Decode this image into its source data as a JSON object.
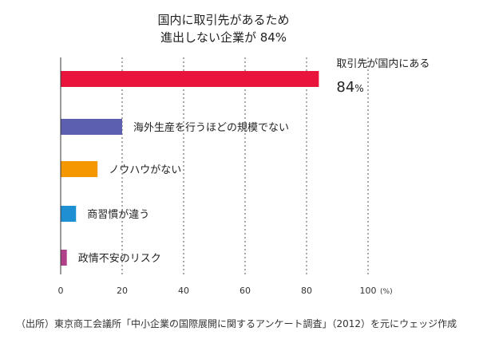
{
  "chart_data": {
    "type": "bar",
    "orientation": "horizontal",
    "title_lines": [
      "国内に取引先があるため",
      "進出しない企業が 84%"
    ],
    "categories": [
      "取引先が国内にある",
      "海外生産を行うほどの規模でない",
      "ノウハウがない",
      "商習慣が違う",
      "政情不安のリスク"
    ],
    "values": [
      84,
      20,
      12,
      5,
      2
    ],
    "bar_colors": [
      "#e8143c",
      "#5c5fad",
      "#f39800",
      "#1f8fd4",
      "#b0408a"
    ],
    "highlight_value_label": "84",
    "highlight_value_unit": "%",
    "xlim": [
      0,
      100
    ],
    "xticks": [
      0,
      20,
      40,
      60,
      80,
      100
    ],
    "x_unit": "(%)",
    "grid": "vertical-dashed"
  },
  "source_note": "（出所）東京商工会議所「中小企業の国際展開に関するアンケート調査」（2012）を元にウェッジ作成"
}
